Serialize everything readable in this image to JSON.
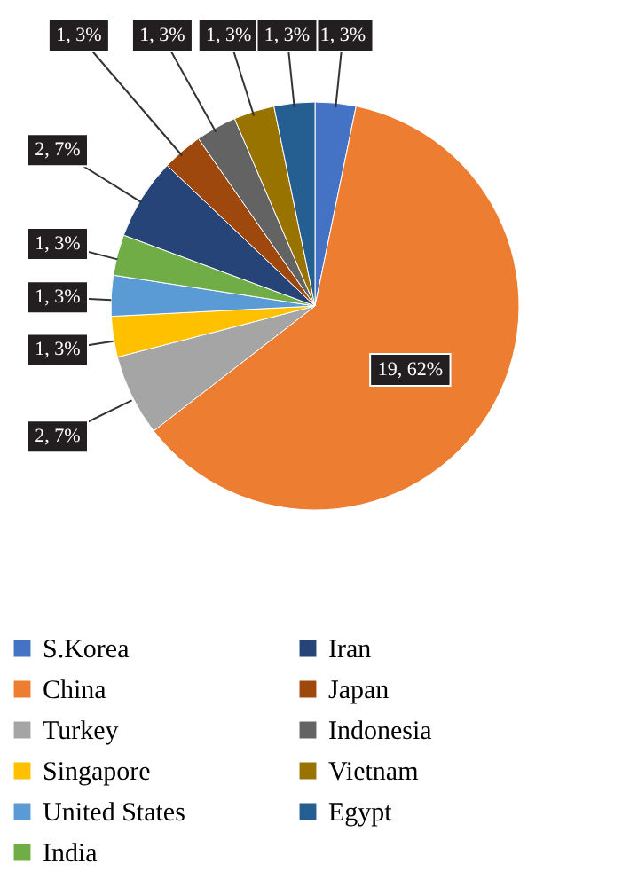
{
  "chart_data": {
    "type": "pie",
    "categories": [
      "S.Korea",
      "China",
      "Turkey",
      "Singapore",
      "United States",
      "India",
      "Iran",
      "Japan",
      "Indonesia",
      "Vietnam",
      "Egypt"
    ],
    "values": [
      1,
      19,
      2,
      1,
      1,
      1,
      2,
      1,
      1,
      1,
      1
    ],
    "colors": [
      "#4472c4",
      "#ed7d31",
      "#a5a5a5",
      "#ffc000",
      "#5b9bd5",
      "#70ad47",
      "#264478",
      "#9e480e",
      "#636363",
      "#997300",
      "#255e91"
    ],
    "value_labels": [
      "1, 3%",
      "19, 62%",
      "2, 7%",
      "1, 3%",
      "1, 3%",
      "1, 3%",
      "2, 7%",
      "1, 3%",
      "1, 3%",
      "1, 3%",
      "1, 3%"
    ],
    "legend": "bottom"
  }
}
